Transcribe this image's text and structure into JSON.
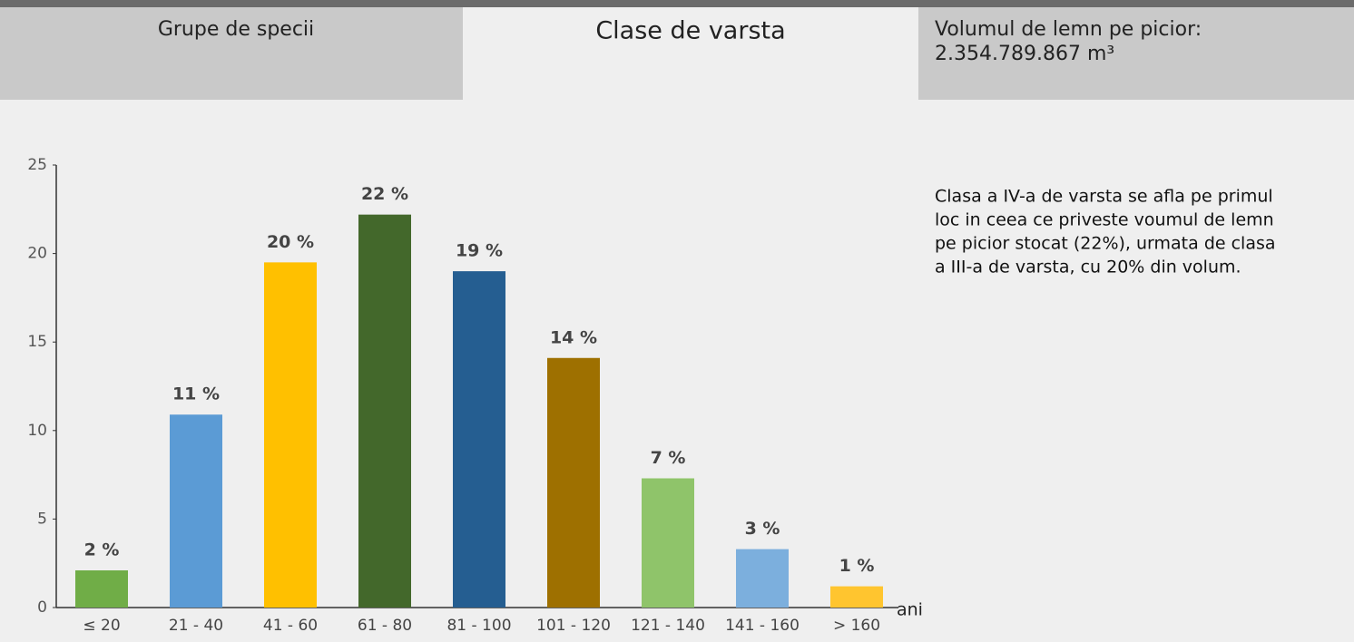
{
  "tabs": [
    "Grupe de specii",
    "Clase de varsta"
  ],
  "volume": {
    "label": "Volumul de lemn pe picior:",
    "value": "2.354.789.867 m³"
  },
  "note": [
    "Clasa a IV-a de varsta se afla pe primul",
    "loc in ceea ce priveste voumul de lemn",
    "pe picior stocat (22%), urmata de clasa",
    "a III-a de varsta, cu 20% din volum."
  ],
  "chart_data": {
    "type": "bar",
    "x_label": "ani",
    "categories": [
      "≤ 20",
      "21 - 40",
      "41 - 60",
      "61 - 80",
      "81 - 100",
      "101 - 120",
      "121 - 140",
      "141 - 160",
      "> 160"
    ],
    "values": [
      2.1,
      10.9,
      19.5,
      22.2,
      19,
      14.1,
      7.3,
      3.3,
      1.2
    ],
    "value_labels": [
      "2 %",
      "11 %",
      "20 %",
      "22 %",
      "19 %",
      "14 %",
      "7 %",
      "3 %",
      "1 %"
    ],
    "colors": [
      "#70ad47",
      "#5b9bd5",
      "#ffc000",
      "#43682b",
      "#255e91",
      "#9e7000",
      "#8fc46a",
      "#7cafdd",
      "#ffc52f"
    ],
    "ylim": [
      0,
      25
    ],
    "yticks": [
      0,
      5,
      10,
      15,
      20,
      25
    ],
    "grid": false
  }
}
